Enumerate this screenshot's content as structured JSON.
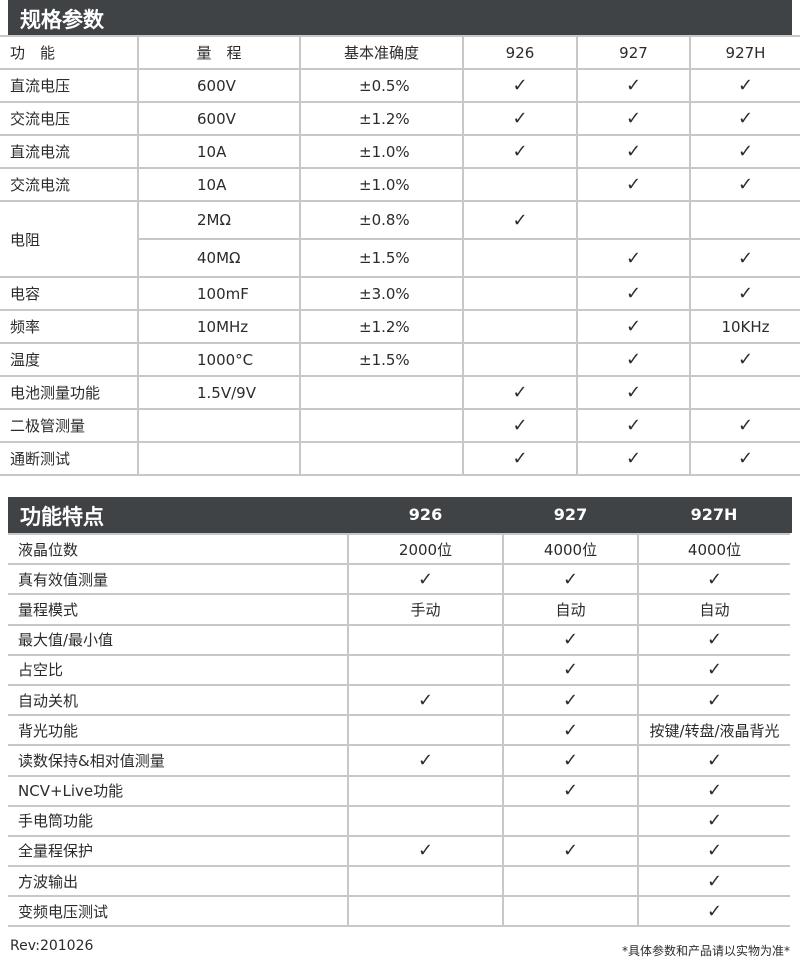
{
  "spec": {
    "title": "规格参数",
    "headers": [
      "功　能",
      "量　程",
      "基本准确度",
      "926",
      "927",
      "927H"
    ],
    "rows": [
      {
        "func": "直流电压",
        "range": "600V",
        "acc": "±0.5%",
        "m": [
          "✓",
          "✓",
          "✓"
        ]
      },
      {
        "func": "交流电压",
        "range": "600V",
        "acc": "±1.2%",
        "m": [
          "✓",
          "✓",
          "✓"
        ]
      },
      {
        "func": "直流电流",
        "range": "10A",
        "acc": "±1.0%",
        "m": [
          "✓",
          "✓",
          "✓"
        ]
      },
      {
        "func": "交流电流",
        "range": "10A",
        "acc": "±1.0%",
        "m": [
          "",
          "✓",
          "✓"
        ]
      },
      {
        "func": "电阻",
        "range": "2MΩ",
        "acc": "±0.8%",
        "m": [
          "✓",
          "",
          ""
        ]
      },
      {
        "func": "",
        "range": "40MΩ",
        "acc": "±1.5%",
        "m": [
          "",
          "✓",
          "✓"
        ]
      },
      {
        "func": "电容",
        "range": "100mF",
        "acc": "±3.0%",
        "m": [
          "",
          "✓",
          "✓"
        ]
      },
      {
        "func": "频率",
        "range": "10MHz",
        "acc": "±1.2%",
        "m": [
          "",
          "✓",
          "10KHz"
        ]
      },
      {
        "func": "温度",
        "range": "1000°C",
        "acc": "±1.5%",
        "m": [
          "",
          "✓",
          "✓"
        ]
      },
      {
        "func": "电池测量功能",
        "range": "1.5V/9V",
        "acc": "",
        "m": [
          "✓",
          "✓",
          ""
        ]
      },
      {
        "func": "二极管测量",
        "range": "",
        "acc": "",
        "m": [
          "✓",
          "✓",
          "✓"
        ]
      },
      {
        "func": "通断测试",
        "range": "",
        "acc": "",
        "m": [
          "✓",
          "✓",
          "✓"
        ]
      }
    ]
  },
  "features": {
    "title": "功能特点",
    "models": [
      "926",
      "927",
      "927H"
    ],
    "rows": [
      {
        "name": "液晶位数",
        "m": [
          "2000位",
          "4000位",
          "4000位"
        ]
      },
      {
        "name": "真有效值测量",
        "m": [
          "✓",
          "✓",
          "✓"
        ]
      },
      {
        "name": "量程模式",
        "m": [
          "手动",
          "自动",
          "自动"
        ]
      },
      {
        "name": "最大值/最小值",
        "m": [
          "",
          "✓",
          "✓"
        ]
      },
      {
        "name": "占空比",
        "m": [
          "",
          "✓",
          "✓"
        ]
      },
      {
        "name": "自动关机",
        "m": [
          "✓",
          "✓",
          "✓"
        ]
      },
      {
        "name": "背光功能",
        "m": [
          "",
          "✓",
          "按键/转盘/液晶背光"
        ]
      },
      {
        "name": "读数保持&相对值测量",
        "m": [
          "✓",
          "✓",
          "✓"
        ]
      },
      {
        "name": "NCV+Live功能",
        "m": [
          "",
          "✓",
          "✓"
        ]
      },
      {
        "name": "手电筒功能",
        "m": [
          "",
          "",
          "✓"
        ]
      },
      {
        "name": "全量程保护",
        "m": [
          "✓",
          "✓",
          "✓"
        ]
      },
      {
        "name": "方波输出",
        "m": [
          "",
          "",
          "✓"
        ]
      },
      {
        "name": "变频电压测试",
        "m": [
          "",
          "",
          "✓"
        ]
      }
    ]
  },
  "footer": {
    "rev": "Rev:201026",
    "note": "*具体参数和产品请以实物为准*"
  }
}
